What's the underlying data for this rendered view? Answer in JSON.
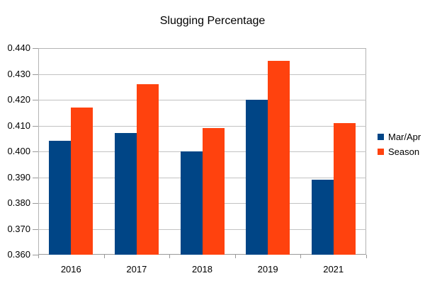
{
  "chart_data": {
    "type": "bar",
    "title": "Slugging Percentage",
    "categories": [
      "2016",
      "2017",
      "2018",
      "2019",
      "2021"
    ],
    "series": [
      {
        "name": "Mar/Apr",
        "color": "#004586",
        "values": [
          0.404,
          0.407,
          0.4,
          0.42,
          0.389
        ]
      },
      {
        "name": "Season",
        "color": "#FF420E",
        "values": [
          0.417,
          0.426,
          0.409,
          0.435,
          0.411
        ]
      }
    ],
    "xlabel": "",
    "ylabel": "",
    "ylim": [
      0.36,
      0.44
    ],
    "ytick_step": 0.01,
    "ytick_labels": [
      "0.440",
      "0.430",
      "0.420",
      "0.410",
      "0.400",
      "0.390",
      "0.380",
      "0.370",
      "0.360"
    ],
    "grid": true,
    "legend_position": "right",
    "colors": {
      "gridline": "#c2c2c2",
      "axis": "#999999",
      "text": "#000000",
      "background": "#ffffff"
    }
  }
}
